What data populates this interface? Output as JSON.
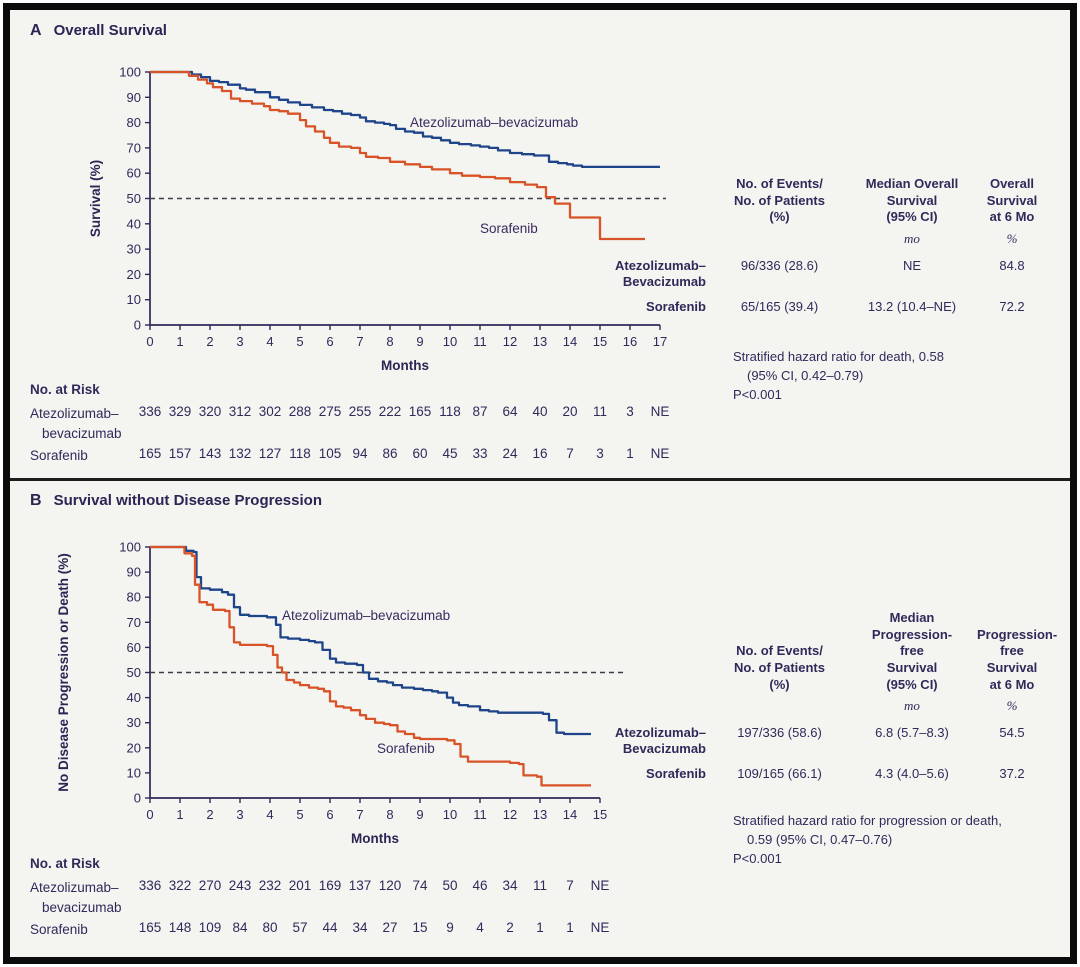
{
  "colors": {
    "ink": "#32285a",
    "atezolizumab_curve": "#1e4489",
    "sorafenib_curve": "#d85327",
    "reference_dash": "#3c3c46",
    "background": "#f4f4f1",
    "frame_border": "#0b0b0b"
  },
  "chart_data": [
    {
      "type": "line",
      "subtype": "kaplan-meier",
      "panel_letter": "A",
      "title": "Overall Survival",
      "xlabel": "Months",
      "ylabel": "Survival (%)",
      "xlim": [
        0,
        17
      ],
      "ylim": [
        0,
        100
      ],
      "xticks": [
        0,
        1,
        2,
        3,
        4,
        5,
        6,
        7,
        8,
        9,
        10,
        11,
        12,
        13,
        14,
        15,
        16,
        17
      ],
      "yticks": [
        0,
        10,
        20,
        30,
        40,
        50,
        60,
        70,
        80,
        90,
        100
      ],
      "reference_line": 50,
      "dash_end_month": 17.2,
      "grid": false,
      "series": [
        {
          "name": "Atezolizumab–bevacizumab",
          "color": "#1e4489",
          "points": [
            [
              0,
              100
            ],
            [
              1,
              100
            ],
            [
              1.4,
              99
            ],
            [
              1.7,
              98
            ],
            [
              2,
              96.5
            ],
            [
              2.3,
              96
            ],
            [
              2.6,
              95
            ],
            [
              3,
              93.5
            ],
            [
              3.2,
              93
            ],
            [
              3.5,
              92
            ],
            [
              4,
              90
            ],
            [
              4.3,
              89
            ],
            [
              4.6,
              88
            ],
            [
              5,
              87
            ],
            [
              5.4,
              86
            ],
            [
              5.8,
              85
            ],
            [
              6.1,
              84.5
            ],
            [
              6.4,
              83.5
            ],
            [
              6.7,
              83
            ],
            [
              7,
              82
            ],
            [
              7.2,
              80.5
            ],
            [
              7.5,
              80
            ],
            [
              7.8,
              79.5
            ],
            [
              8,
              79
            ],
            [
              8.2,
              77.5
            ],
            [
              8.5,
              76.5
            ],
            [
              8.8,
              76
            ],
            [
              9.1,
              74.5
            ],
            [
              9.4,
              74
            ],
            [
              9.7,
              73
            ],
            [
              10,
              72
            ],
            [
              10.3,
              71.5
            ],
            [
              10.7,
              71
            ],
            [
              11,
              70.5
            ],
            [
              11.3,
              70
            ],
            [
              11.6,
              69
            ],
            [
              12,
              68
            ],
            [
              12.4,
              67.5
            ],
            [
              12.8,
              67
            ],
            [
              13.1,
              67
            ],
            [
              13.3,
              64.5
            ],
            [
              13.6,
              64
            ],
            [
              13.9,
              63.5
            ],
            [
              14.1,
              63
            ],
            [
              14.4,
              62.5
            ],
            [
              17,
              62.5
            ]
          ]
        },
        {
          "name": "Sorafenib",
          "color": "#d85327",
          "points": [
            [
              0,
              100
            ],
            [
              1,
              100
            ],
            [
              1.3,
              98.5
            ],
            [
              1.6,
              97
            ],
            [
              1.9,
              95.5
            ],
            [
              2.1,
              94
            ],
            [
              2.4,
              92.5
            ],
            [
              2.7,
              89.5
            ],
            [
              3,
              88.5
            ],
            [
              3.4,
              87.5
            ],
            [
              3.8,
              86.5
            ],
            [
              4,
              85
            ],
            [
              4.3,
              84.5
            ],
            [
              4.6,
              83.5
            ],
            [
              5,
              81
            ],
            [
              5.2,
              78.5
            ],
            [
              5.5,
              76.5
            ],
            [
              5.8,
              74
            ],
            [
              6,
              72
            ],
            [
              6.3,
              70.5
            ],
            [
              6.7,
              70
            ],
            [
              7,
              68
            ],
            [
              7.2,
              66.5
            ],
            [
              7.6,
              66
            ],
            [
              8,
              64.5
            ],
            [
              8.5,
              63.5
            ],
            [
              9,
              62.5
            ],
            [
              9.4,
              61.5
            ],
            [
              10,
              60
            ],
            [
              10.4,
              59
            ],
            [
              11,
              58.5
            ],
            [
              11.5,
              58
            ],
            [
              12,
              56.5
            ],
            [
              12.5,
              55.5
            ],
            [
              12.9,
              54.5
            ],
            [
              13.2,
              50.5
            ],
            [
              13.5,
              48
            ],
            [
              14,
              42.5
            ],
            [
              15,
              34
            ],
            [
              16.5,
              34
            ]
          ]
        }
      ],
      "summary_table": {
        "headers": [
          [
            "No. of Events/",
            "No. of Patients",
            "(%)"
          ],
          [
            "Median Overall",
            "Survival",
            "(95% CI)"
          ],
          [
            "Overall",
            "Survival",
            "at 6 Mo"
          ]
        ],
        "units": [
          "",
          "mo",
          "%"
        ],
        "rows": [
          {
            "label": [
              "Atezolizumab–",
              "Bevacizumab"
            ],
            "values": [
              "96/336 (28.6)",
              "NE",
              "84.8"
            ]
          },
          {
            "label": [
              "Sorafenib"
            ],
            "values": [
              "65/165 (39.4)",
              "13.2 (10.4–NE)",
              "72.2"
            ]
          }
        ]
      },
      "hazard_note": [
        "Stratified hazard ratio for death, 0.58",
        "(95% CI, 0.42–0.79)",
        "P<0.001"
      ],
      "at_risk": {
        "header": "No. at Risk",
        "rows": [
          {
            "label": [
              "Atezolizumab–",
              "bevacizumab"
            ],
            "values": [
              "336",
              "329",
              "320",
              "312",
              "302",
              "288",
              "275",
              "255",
              "222",
              "165",
              "118",
              "87",
              "64",
              "40",
              "20",
              "11",
              "3",
              "NE"
            ]
          },
          {
            "label": [
              "Sorafenib"
            ],
            "values": [
              "165",
              "157",
              "143",
              "132",
              "127",
              "118",
              "105",
              "94",
              "86",
              "60",
              "45",
              "33",
              "24",
              "16",
              "7",
              "3",
              "1",
              "NE"
            ]
          }
        ]
      }
    },
    {
      "type": "line",
      "subtype": "kaplan-meier",
      "panel_letter": "B",
      "title": "Survival without Disease Progression",
      "xlabel": "Months",
      "ylabel": "No Disease Progression or Death (%)",
      "xlim": [
        0,
        15
      ],
      "ylim": [
        0,
        100
      ],
      "xticks": [
        0,
        1,
        2,
        3,
        4,
        5,
        6,
        7,
        8,
        9,
        10,
        11,
        12,
        13,
        14,
        15
      ],
      "yticks": [
        0,
        10,
        20,
        30,
        40,
        50,
        60,
        70,
        80,
        90,
        100
      ],
      "reference_line": 50,
      "dash_end_month": 15.9,
      "grid": false,
      "series": [
        {
          "name": "Atezolizumab–bevacizumab",
          "color": "#1e4489",
          "points": [
            [
              0,
              100
            ],
            [
              1.1,
              100
            ],
            [
              1.2,
              98.5
            ],
            [
              1.45,
              98
            ],
            [
              1.55,
              88
            ],
            [
              1.7,
              83.5
            ],
            [
              2,
              83
            ],
            [
              2.4,
              82
            ],
            [
              2.6,
              81
            ],
            [
              2.8,
              76
            ],
            [
              3,
              73
            ],
            [
              3.3,
              72.5
            ],
            [
              3.9,
              72
            ],
            [
              4.2,
              69
            ],
            [
              4.35,
              64
            ],
            [
              4.6,
              63.5
            ],
            [
              5,
              63
            ],
            [
              5.3,
              62.5
            ],
            [
              5.5,
              62
            ],
            [
              5.75,
              59
            ],
            [
              6,
              55.5
            ],
            [
              6.2,
              54
            ],
            [
              6.5,
              53.5
            ],
            [
              6.9,
              53
            ],
            [
              7.1,
              50
            ],
            [
              7.3,
              47.5
            ],
            [
              7.6,
              46.5
            ],
            [
              7.9,
              46
            ],
            [
              8.1,
              45
            ],
            [
              8.4,
              44
            ],
            [
              8.8,
              43.5
            ],
            [
              9.1,
              43
            ],
            [
              9.4,
              42.5
            ],
            [
              9.6,
              42
            ],
            [
              9.9,
              40
            ],
            [
              10.1,
              38
            ],
            [
              10.3,
              37
            ],
            [
              10.6,
              36.5
            ],
            [
              11,
              35
            ],
            [
              11.3,
              34.5
            ],
            [
              11.6,
              34
            ],
            [
              12.9,
              34
            ],
            [
              13.1,
              33.5
            ],
            [
              13.3,
              31
            ],
            [
              13.55,
              26
            ],
            [
              13.8,
              25.5
            ],
            [
              14.7,
              25.5
            ]
          ]
        },
        {
          "name": "Sorafenib",
          "color": "#d85327",
          "points": [
            [
              0,
              100
            ],
            [
              1.05,
              100
            ],
            [
              1.15,
              97.5
            ],
            [
              1.4,
              96.5
            ],
            [
              1.5,
              85
            ],
            [
              1.65,
              78
            ],
            [
              1.9,
              77
            ],
            [
              2.1,
              75
            ],
            [
              2.5,
              74.5
            ],
            [
              2.65,
              68
            ],
            [
              2.8,
              62
            ],
            [
              3,
              61
            ],
            [
              3.9,
              60.5
            ],
            [
              4.1,
              57
            ],
            [
              4.25,
              52
            ],
            [
              4.4,
              50
            ],
            [
              4.55,
              47
            ],
            [
              4.8,
              46
            ],
            [
              5,
              45
            ],
            [
              5.3,
              44
            ],
            [
              5.6,
              43.5
            ],
            [
              5.8,
              42.5
            ],
            [
              6,
              38.5
            ],
            [
              6.2,
              36.5
            ],
            [
              6.45,
              36
            ],
            [
              6.7,
              35
            ],
            [
              7,
              33
            ],
            [
              7.2,
              31.5
            ],
            [
              7.5,
              30
            ],
            [
              7.8,
              29.5
            ],
            [
              8,
              29
            ],
            [
              8.25,
              26.5
            ],
            [
              8.5,
              25.5
            ],
            [
              8.8,
              24
            ],
            [
              9,
              23.5
            ],
            [
              9.9,
              23
            ],
            [
              10.15,
              21.5
            ],
            [
              10.35,
              16.5
            ],
            [
              10.6,
              14.5
            ],
            [
              12,
              14
            ],
            [
              12.3,
              13.5
            ],
            [
              12.45,
              9
            ],
            [
              12.9,
              8.5
            ],
            [
              13.05,
              5
            ],
            [
              14.7,
              5
            ]
          ]
        }
      ],
      "summary_table": {
        "headers": [
          [
            "No. of Events/",
            "No. of Patients",
            "(%)"
          ],
          [
            "Median",
            "Progression-",
            "free",
            "Survival",
            "(95% CI)"
          ],
          [
            "Progression-",
            "free",
            "Survival",
            "at 6 Mo"
          ]
        ],
        "units": [
          "",
          "mo",
          "%"
        ],
        "rows": [
          {
            "label": [
              "Atezolizumab–",
              "Bevacizumab"
            ],
            "values": [
              "197/336 (58.6)",
              "6.8 (5.7–8.3)",
              "54.5"
            ]
          },
          {
            "label": [
              "Sorafenib"
            ],
            "values": [
              "109/165 (66.1)",
              "4.3 (4.0–5.6)",
              "37.2"
            ]
          }
        ]
      },
      "hazard_note": [
        "Stratified hazard ratio for progression or death,",
        "0.59 (95% CI, 0.47–0.76)",
        "P<0.001"
      ],
      "at_risk": {
        "header": "No. at Risk",
        "rows": [
          {
            "label": [
              "Atezolizumab–",
              "bevacizumab"
            ],
            "values": [
              "336",
              "322",
              "270",
              "243",
              "232",
              "201",
              "169",
              "137",
              "120",
              "74",
              "50",
              "46",
              "34",
              "11",
              "7",
              "NE"
            ]
          },
          {
            "label": [
              "Sorafenib"
            ],
            "values": [
              "165",
              "148",
              "109",
              "84",
              "80",
              "57",
              "44",
              "34",
              "27",
              "15",
              "9",
              "4",
              "2",
              "1",
              "1",
              "NE"
            ]
          }
        ]
      }
    }
  ]
}
